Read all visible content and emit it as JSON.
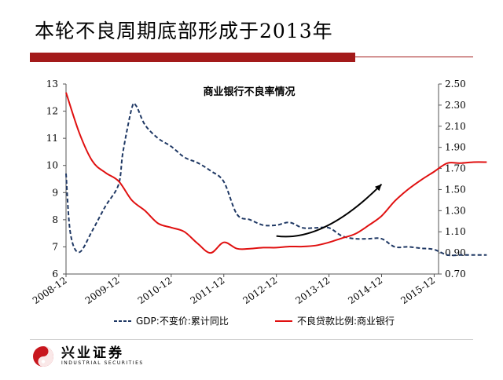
{
  "slide": {
    "title": "本轮不良周期底部形成于2013年"
  },
  "logo": {
    "name": "兴业证券",
    "subtitle": "INDUSTRIAL SECURITIES",
    "primary_color": "#c8161d"
  },
  "colors": {
    "accent": "#a31a1a",
    "gdp_series": "#1f3864",
    "npl_series": "#e01010",
    "arrow": "#000000"
  },
  "chart_data": {
    "type": "line",
    "title": "商业银行不良率情况",
    "x_ticks": [
      "2008-12",
      "2009-12",
      "2010-12",
      "2011-12",
      "2012-12",
      "2013-12",
      "2014-12",
      "2015-12"
    ],
    "left_axis": {
      "ylim": [
        6,
        13
      ],
      "ticks": [
        "6",
        "7",
        "8",
        "9",
        "10",
        "11",
        "12",
        "13"
      ]
    },
    "right_axis": {
      "ylim": [
        0.7,
        2.5
      ],
      "ticks": [
        "0.70",
        "0.90",
        "1.10",
        "1.30",
        "1.50",
        "1.70",
        "1.90",
        "2.10",
        "2.30",
        "2.50"
      ]
    },
    "series": [
      {
        "name": "GDP:不变价:累计同比",
        "axis": "left",
        "style": "dashed",
        "points": [
          [
            "2008-12",
            9.7
          ],
          [
            "2009-01",
            7.5
          ],
          [
            "2009-03",
            6.8
          ],
          [
            "2009-06",
            7.6
          ],
          [
            "2009-09",
            8.5
          ],
          [
            "2009-12",
            9.3
          ],
          [
            "2010-01",
            10.5
          ],
          [
            "2010-03",
            12.1
          ],
          [
            "2010-04",
            12.2
          ],
          [
            "2010-06",
            11.5
          ],
          [
            "2010-09",
            11.0
          ],
          [
            "2010-12",
            10.7
          ],
          [
            "2011-03",
            10.3
          ],
          [
            "2011-06",
            10.1
          ],
          [
            "2011-09",
            9.8
          ],
          [
            "2011-12",
            9.4
          ],
          [
            "2012-03",
            8.2
          ],
          [
            "2012-06",
            8.0
          ],
          [
            "2012-09",
            7.8
          ],
          [
            "2012-12",
            7.8
          ],
          [
            "2013-03",
            7.9
          ],
          [
            "2013-06",
            7.7
          ],
          [
            "2013-09",
            7.7
          ],
          [
            "2013-12",
            7.7
          ],
          [
            "2014-03",
            7.4
          ],
          [
            "2014-06",
            7.3
          ],
          [
            "2014-09",
            7.3
          ],
          [
            "2014-12",
            7.3
          ],
          [
            "2015-03",
            7.0
          ],
          [
            "2015-06",
            7.0
          ],
          [
            "2015-09",
            6.95
          ],
          [
            "2015-12",
            6.9
          ],
          [
            "2016-03",
            6.7
          ],
          [
            "2016-06",
            6.7
          ],
          [
            "2016-09",
            6.7
          ],
          [
            "2016-12",
            6.7
          ]
        ]
      },
      {
        "name": "不良贷款比例:商业银行",
        "axis": "right",
        "style": "solid",
        "points": [
          [
            "2008-12",
            2.42
          ],
          [
            "2009-03",
            2.04
          ],
          [
            "2009-06",
            1.77
          ],
          [
            "2009-09",
            1.66
          ],
          [
            "2009-12",
            1.58
          ],
          [
            "2010-03",
            1.4
          ],
          [
            "2010-06",
            1.3
          ],
          [
            "2010-09",
            1.18
          ],
          [
            "2010-12",
            1.14
          ],
          [
            "2011-03",
            1.1
          ],
          [
            "2011-06",
            0.99
          ],
          [
            "2011-09",
            0.9
          ],
          [
            "2011-12",
            1.0
          ],
          [
            "2012-03",
            0.94
          ],
          [
            "2012-06",
            0.94
          ],
          [
            "2012-09",
            0.95
          ],
          [
            "2012-12",
            0.95
          ],
          [
            "2013-03",
            0.96
          ],
          [
            "2013-06",
            0.96
          ],
          [
            "2013-09",
            0.97
          ],
          [
            "2013-12",
            1.0
          ],
          [
            "2014-03",
            1.04
          ],
          [
            "2014-06",
            1.08
          ],
          [
            "2014-09",
            1.16
          ],
          [
            "2014-12",
            1.25
          ],
          [
            "2015-03",
            1.39
          ],
          [
            "2015-06",
            1.5
          ],
          [
            "2015-09",
            1.59
          ],
          [
            "2015-12",
            1.67
          ],
          [
            "2016-03",
            1.75
          ],
          [
            "2016-06",
            1.75
          ],
          [
            "2016-09",
            1.76
          ],
          [
            "2016-12",
            1.76
          ]
        ]
      }
    ],
    "annotation": {
      "type": "arrow",
      "from": [
        "2012-12",
        1.06
      ],
      "to": [
        "2014-12",
        1.55
      ]
    },
    "legend_position": "bottom",
    "grid": false
  }
}
